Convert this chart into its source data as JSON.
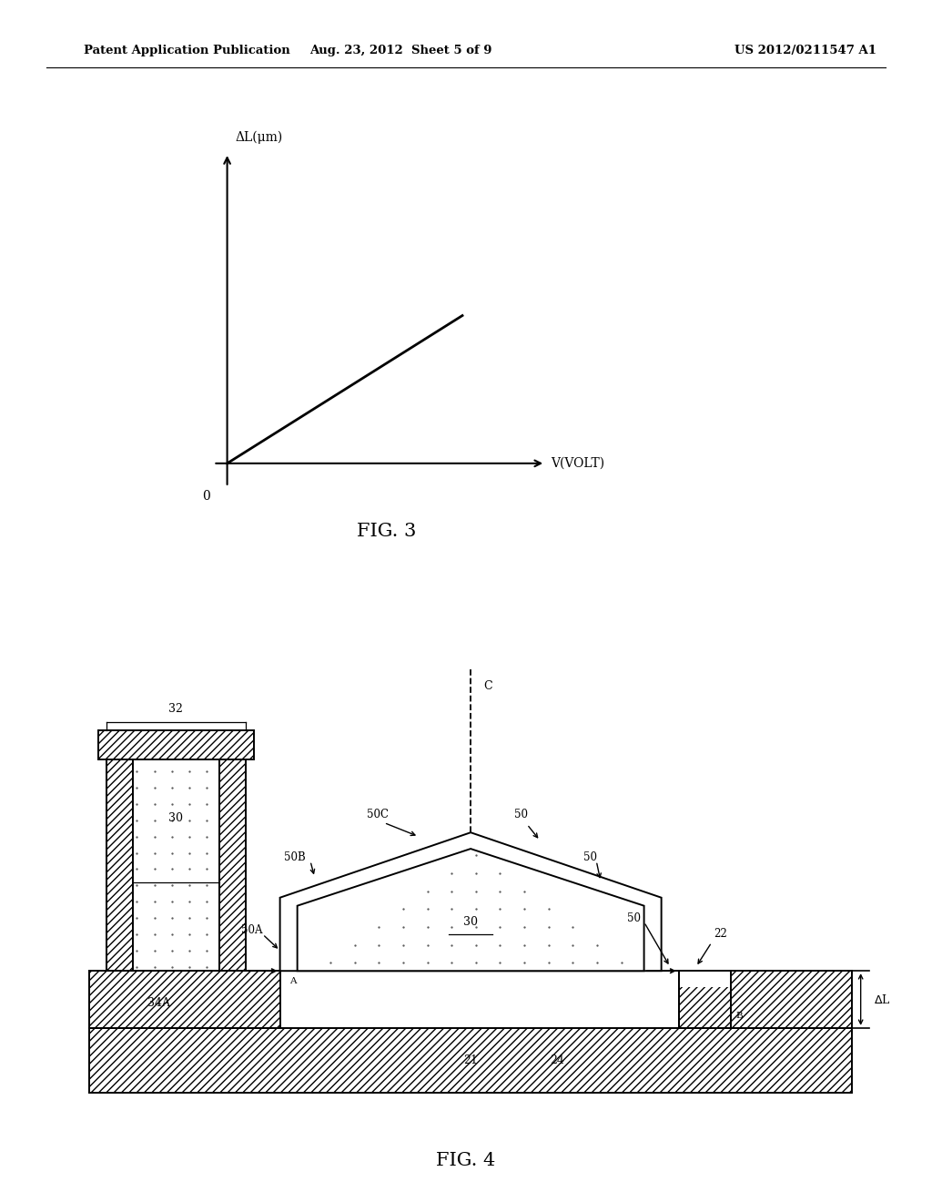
{
  "bg_color": "#ffffff",
  "header_left": "Patent Application Publication",
  "header_center": "Aug. 23, 2012  Sheet 5 of 9",
  "header_right": "US 2012/0211547 A1",
  "fig3_title": "FIG. 3",
  "fig3_ylabel": "ΔL(μm)",
  "fig3_xlabel": "V(VOLT)",
  "fig3_zero": "0",
  "fig4_title": "FIG. 4",
  "line_color": "#000000"
}
